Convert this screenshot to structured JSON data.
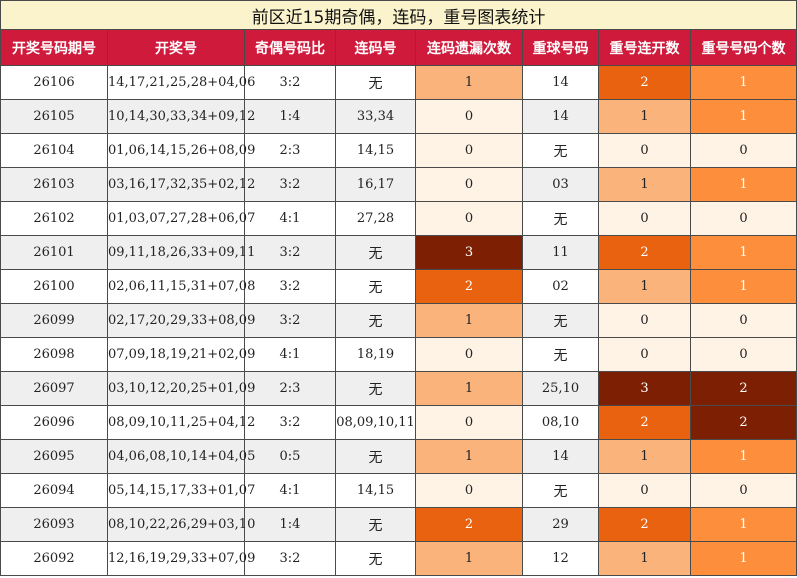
{
  "title": "前区近15期奇偶，连码，重号图表统计",
  "headers": [
    "开奖号码期号",
    "开奖号",
    "奇偶号码比",
    "连码号",
    "连码遗漏次数",
    "重球号码",
    "重号连开数",
    "重号号码个数"
  ],
  "rows": [
    {
      "issue": "26106",
      "numbers": "14,17,21,25,28+04,06",
      "ratio": "3:2",
      "consec": "无",
      "consec_miss": "1",
      "repeat_nums": "14",
      "repeat_streak": "2",
      "repeat_count": "1"
    },
    {
      "issue": "26105",
      "numbers": "10,14,30,33,34+09,12",
      "ratio": "1:4",
      "consec": "33,34",
      "consec_miss": "0",
      "repeat_nums": "14",
      "repeat_streak": "1",
      "repeat_count": "1"
    },
    {
      "issue": "26104",
      "numbers": "01,06,14,15,26+08,09",
      "ratio": "2:3",
      "consec": "14,15",
      "consec_miss": "0",
      "repeat_nums": "无",
      "repeat_streak": "0",
      "repeat_count": "0"
    },
    {
      "issue": "26103",
      "numbers": "03,16,17,32,35+02,12",
      "ratio": "3:2",
      "consec": "16,17",
      "consec_miss": "0",
      "repeat_nums": "03",
      "repeat_streak": "1",
      "repeat_count": "1"
    },
    {
      "issue": "26102",
      "numbers": "01,03,07,27,28+06,07",
      "ratio": "4:1",
      "consec": "27,28",
      "consec_miss": "0",
      "repeat_nums": "无",
      "repeat_streak": "0",
      "repeat_count": "0"
    },
    {
      "issue": "26101",
      "numbers": "09,11,18,26,33+09,11",
      "ratio": "3:2",
      "consec": "无",
      "consec_miss": "3",
      "repeat_nums": "11",
      "repeat_streak": "2",
      "repeat_count": "1"
    },
    {
      "issue": "26100",
      "numbers": "02,06,11,15,31+07,08",
      "ratio": "3:2",
      "consec": "无",
      "consec_miss": "2",
      "repeat_nums": "02",
      "repeat_streak": "1",
      "repeat_count": "1"
    },
    {
      "issue": "26099",
      "numbers": "02,17,20,29,33+08,09",
      "ratio": "3:2",
      "consec": "无",
      "consec_miss": "1",
      "repeat_nums": "无",
      "repeat_streak": "0",
      "repeat_count": "0"
    },
    {
      "issue": "26098",
      "numbers": "07,09,18,19,21+02,09",
      "ratio": "4:1",
      "consec": "18,19",
      "consec_miss": "0",
      "repeat_nums": "无",
      "repeat_streak": "0",
      "repeat_count": "0"
    },
    {
      "issue": "26097",
      "numbers": "03,10,12,20,25+01,09",
      "ratio": "2:3",
      "consec": "无",
      "consec_miss": "1",
      "repeat_nums": "25,10",
      "repeat_streak": "3",
      "repeat_count": "2"
    },
    {
      "issue": "26096",
      "numbers": "08,09,10,11,25+04,12",
      "ratio": "3:2",
      "consec": "08,09,10,11",
      "consec_miss": "0",
      "repeat_nums": "08,10",
      "repeat_streak": "2",
      "repeat_count": "2"
    },
    {
      "issue": "26095",
      "numbers": "04,06,08,10,14+04,05",
      "ratio": "0:5",
      "consec": "无",
      "consec_miss": "1",
      "repeat_nums": "14",
      "repeat_streak": "1",
      "repeat_count": "1"
    },
    {
      "issue": "26094",
      "numbers": "05,14,15,17,33+01,07",
      "ratio": "4:1",
      "consec": "14,15",
      "consec_miss": "0",
      "repeat_nums": "无",
      "repeat_streak": "0",
      "repeat_count": "0"
    },
    {
      "issue": "26093",
      "numbers": "08,10,22,26,29+03,10",
      "ratio": "1:4",
      "consec": "无",
      "consec_miss": "2",
      "repeat_nums": "29",
      "repeat_streak": "2",
      "repeat_count": "1"
    },
    {
      "issue": "26092",
      "numbers": "12,16,19,29,33+07,09",
      "ratio": "3:2",
      "consec": "无",
      "consec_miss": "1",
      "repeat_nums": "12",
      "repeat_streak": "1",
      "repeat_count": "1"
    }
  ],
  "colors": {
    "header_bg": "#cf1a3c",
    "title_bg": "#fbf3cc",
    "level_0": "#fff3e6",
    "level_1": "#fbb37c",
    "level_2": "#e8620f",
    "level_3": "#7d1f02",
    "count_1": "#fd8e3c"
  }
}
